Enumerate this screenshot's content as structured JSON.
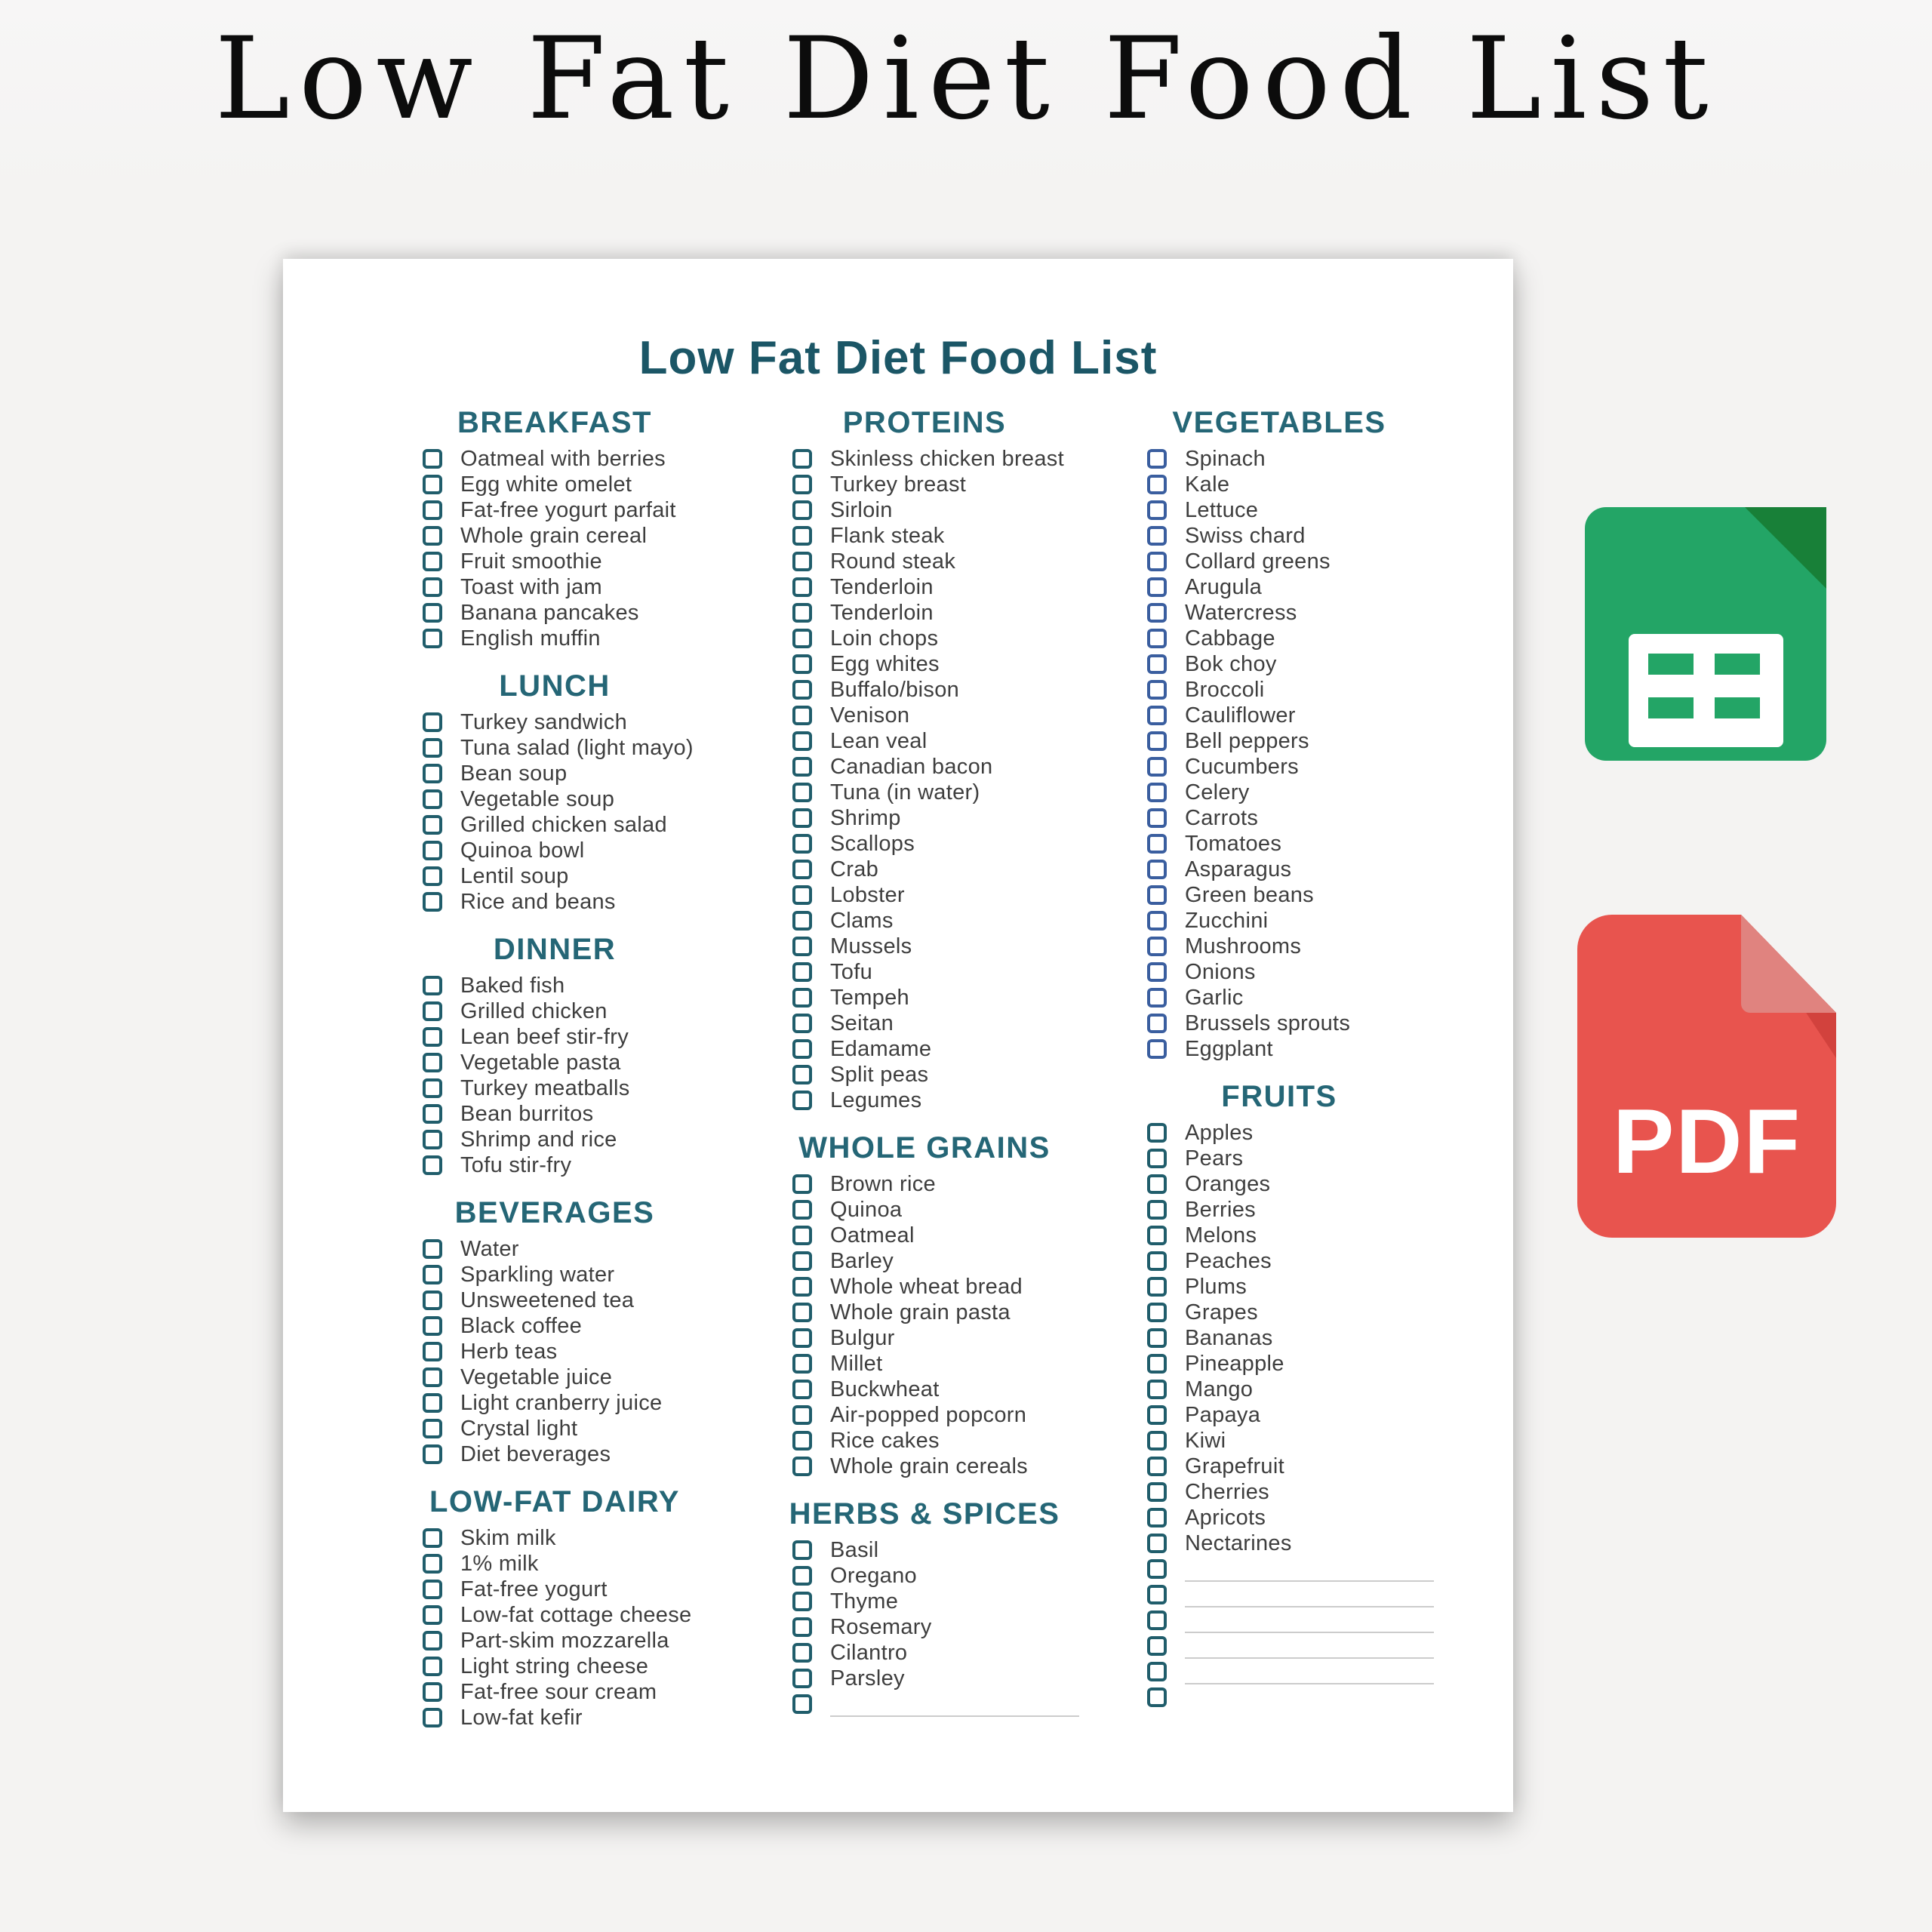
{
  "poster_title": "Low Fat Diet Food List",
  "document": {
    "heading": "Low Fat Diet Food List",
    "columns": [
      {
        "sections": [
          {
            "header": "BREAKFAST",
            "checkbox_color": "#205d6b",
            "items": [
              "Oatmeal with berries",
              "Egg white omelet",
              "Fat-free yogurt parfait",
              "Whole grain cereal",
              "Fruit smoothie",
              "Toast with jam",
              "Banana pancakes",
              "English muffin"
            ]
          },
          {
            "header": "LUNCH",
            "checkbox_color": "#205d6b",
            "items": [
              "Turkey sandwich",
              "Tuna salad (light mayo)",
              "Bean soup",
              "Vegetable soup",
              "Grilled chicken salad",
              "Quinoa bowl",
              "Lentil soup",
              "Rice and beans"
            ]
          },
          {
            "header": "DINNER",
            "checkbox_color": "#205d6b",
            "items": [
              "Baked fish",
              "Grilled chicken",
              "Lean beef stir-fry",
              "Vegetable pasta",
              "Turkey meatballs",
              "Bean burritos",
              "Shrimp and rice",
              "Tofu stir-fry"
            ]
          },
          {
            "header": "BEVERAGES",
            "checkbox_color": "#205d6b",
            "items": [
              "Water",
              "Sparkling water",
              "Unsweetened tea",
              "Black coffee",
              "Herb teas",
              "Vegetable juice",
              "Light cranberry juice",
              "Crystal light",
              "Diet beverages"
            ]
          },
          {
            "header": "LOW-FAT DAIRY",
            "checkbox_color": "#205d6b",
            "items": [
              "Skim milk",
              "1% milk",
              "Fat-free yogurt",
              "Low-fat cottage cheese",
              "Part-skim mozzarella",
              "Light string cheese",
              "Fat-free sour cream",
              "Low-fat kefir"
            ]
          }
        ]
      },
      {
        "sections": [
          {
            "header": "PROTEINS",
            "checkbox_color": "#205d6b",
            "items": [
              "Skinless chicken breast",
              "Turkey breast",
              "Sirloin",
              "Flank steak",
              "Round steak",
              "Tenderloin",
              "Tenderloin",
              "Loin chops",
              "Egg whites",
              "Buffalo/bison",
              "Venison",
              "Lean veal",
              "Canadian bacon",
              "Tuna (in water)",
              "Shrimp",
              "Scallops",
              "Crab",
              "Lobster",
              "Clams",
              "Mussels",
              "Tofu",
              "Tempeh",
              "Seitan",
              "Edamame",
              "Split peas",
              "Legumes"
            ]
          },
          {
            "header": "WHOLE GRAINS",
            "checkbox_color": "#205d6b",
            "items": [
              "Brown rice",
              "Quinoa",
              "Oatmeal",
              "Barley",
              "Whole wheat bread",
              "Whole grain pasta",
              "Bulgur",
              "Millet",
              "Buckwheat",
              "Air-popped popcorn",
              "Rice cakes",
              "Whole grain cereals"
            ]
          },
          {
            "header": "HERBS & SPICES",
            "checkbox_color": "#205d6b",
            "items": [
              "Basil",
              "Oregano",
              "Thyme",
              "Rosemary",
              "Cilantro",
              "Parsley",
              {
                "blank": true,
                "line": true
              }
            ]
          }
        ]
      },
      {
        "sections": [
          {
            "header": "VEGETABLES",
            "checkbox_color": "#3a5e9f",
            "items": [
              "Spinach",
              "Kale",
              "Lettuce",
              "Swiss chard",
              "Collard greens",
              "Arugula",
              "Watercress",
              "Cabbage",
              "Bok choy",
              "Broccoli",
              "Cauliflower",
              "Bell peppers",
              "Cucumbers",
              "Celery",
              "Carrots",
              "Tomatoes",
              "Asparagus",
              "Green beans",
              "Zucchini",
              "Mushrooms",
              "Onions",
              "Garlic",
              "Brussels sprouts",
              "Eggplant"
            ]
          },
          {
            "header": "FRUITS",
            "checkbox_color": "#205d6b",
            "items": [
              "Apples",
              "Pears",
              "Oranges",
              "Berries",
              "Melons",
              "Peaches",
              "Plums",
              "Grapes",
              "Bananas",
              "Pineapple",
              "Mango",
              "Papaya",
              "Kiwi",
              "Grapefruit",
              "Cherries",
              "Apricots",
              "Nectarines",
              {
                "blank": true,
                "line": true
              },
              {
                "blank": true,
                "line": true
              },
              {
                "blank": true,
                "line": true
              },
              {
                "blank": true,
                "line": true
              },
              {
                "blank": true,
                "line": true
              },
              {
                "blank": true,
                "line": false
              }
            ]
          }
        ]
      }
    ]
  },
  "badges": {
    "sheets_icon": "google-sheets",
    "pdf_label": "PDF"
  },
  "colors": {
    "background": "#f4f3f2",
    "page": "#ffffff",
    "poster_title": "#0c0c0c",
    "doc_heading": "#1b5666",
    "section_header": "#256676",
    "item_text": "#3e3e3e",
    "checkbox_teal": "#205d6b",
    "checkbox_blue": "#3a5e9f",
    "blank_line": "#cccccc",
    "sheets_green": "#23a566",
    "sheets_fold": "#188038",
    "pdf_red": "#e8544e",
    "pdf_fold": "#e0837f",
    "pdf_fold_shadow": "#d2423d"
  }
}
